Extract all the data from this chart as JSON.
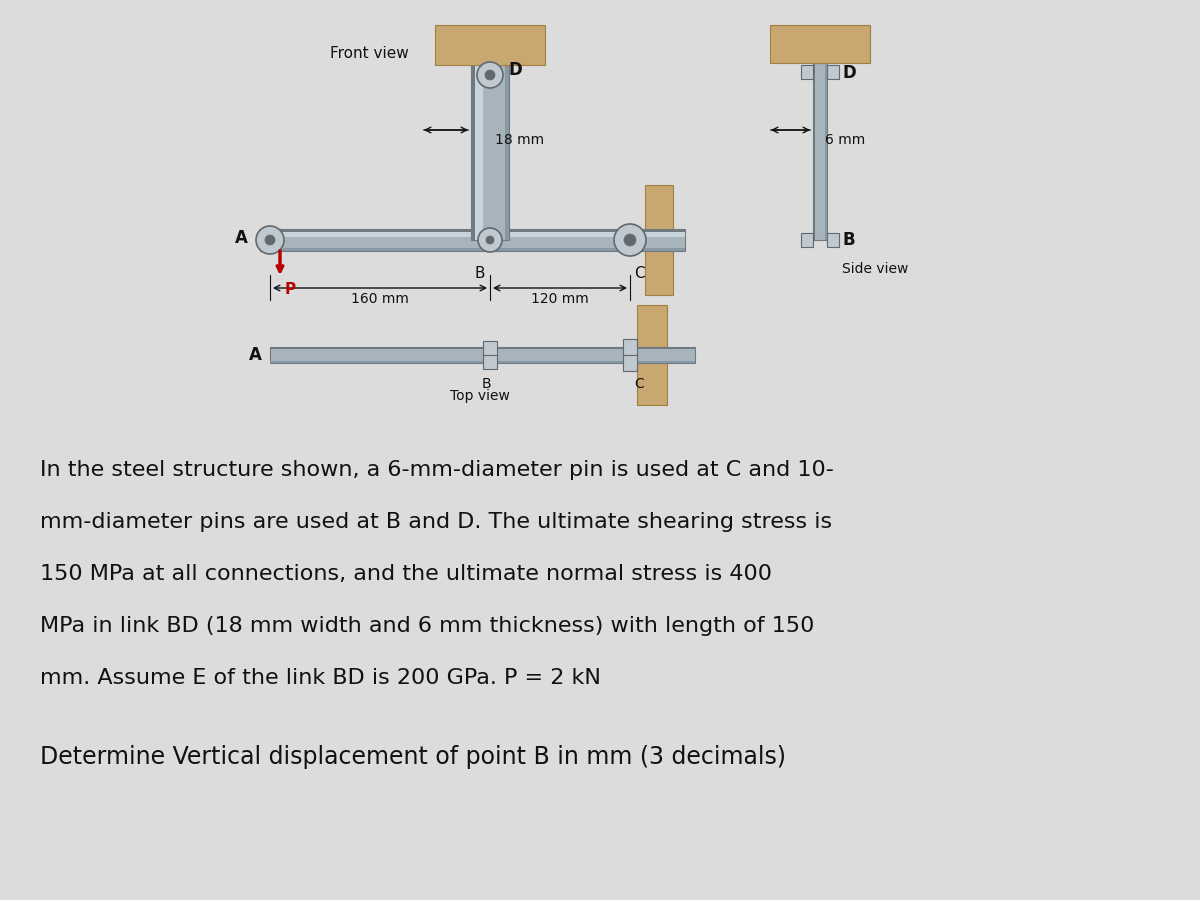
{
  "bg_color": "#dcdcdc",
  "steel_fill": "#a8b4bc",
  "steel_edge": "#707880",
  "steel_light": "#c8d4dc",
  "support_fill": "#c8a870",
  "pin_fill": "#c0c8d0",
  "pin_edge": "#606870",
  "text_color": "#111111",
  "red_color": "#bb0000",
  "front_view_label": "Front view",
  "side_view_label": "Side view",
  "top_view_label": "Top view",
  "dim_18mm": "18 mm",
  "dim_6mm": "6 mm",
  "dim_160mm": "160 mm",
  "dim_120mm": "120 mm",
  "problem_lines": [
    "In the steel structure shown, a 6-mm-diameter pin is used at C and 10-",
    "mm-diameter pins are used at B and D. The ultimate shearing stress is",
    "150 MPa at all connections, and the ultimate normal stress is 400",
    "MPa in link BD (18 mm width and 6 mm thickness) with length of 150",
    "mm. Assume E of the link BD is 200 GPa. P = 2 kN"
  ],
  "question_line": "Determine Vertical displacement of point B in mm (3 decimals)"
}
